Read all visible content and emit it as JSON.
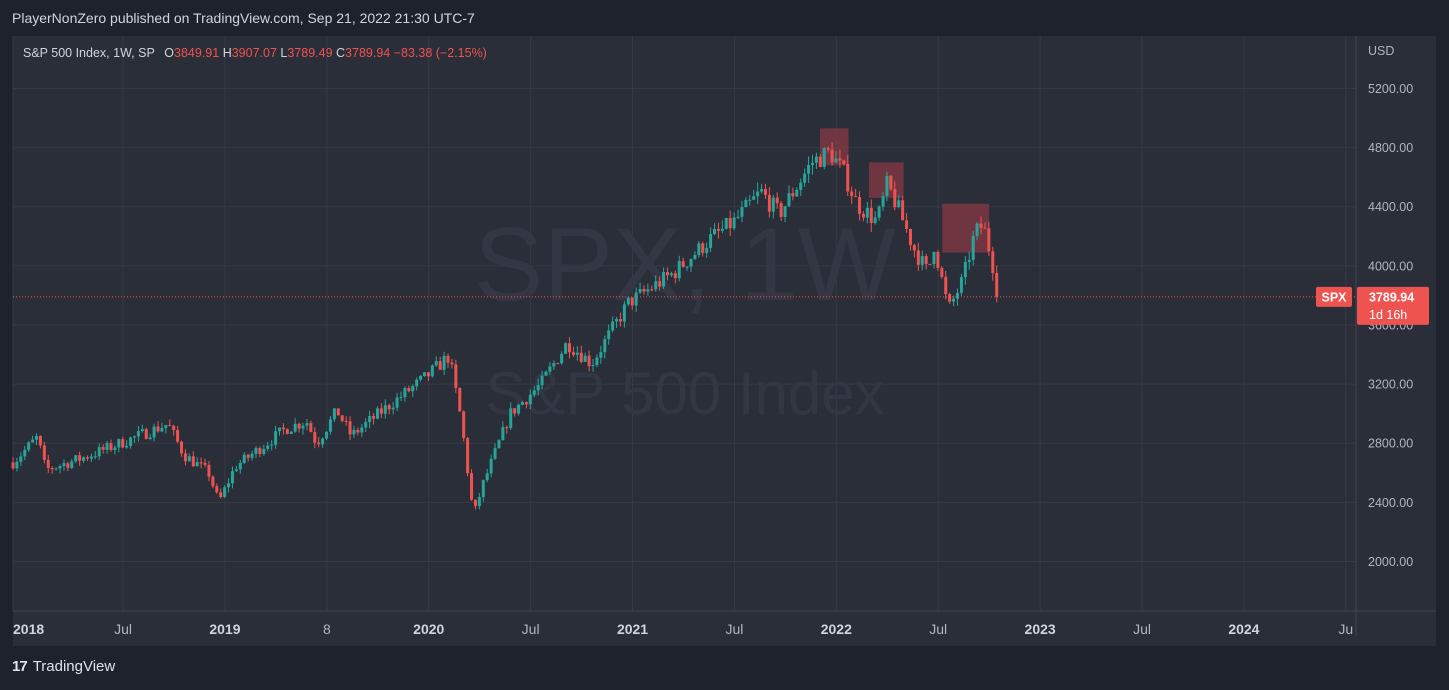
{
  "header": {
    "publisher_text": "PlayerNonZero published on TradingView.com, Sep 21, 2022 21:30 UTC-7"
  },
  "legend": {
    "symbol_text": "S&P 500 Index, 1W, SP",
    "open_label": "O",
    "open_value": "3849.91",
    "high_label": "H",
    "high_value": "3907.07",
    "low_label": "L",
    "low_value": "3789.49",
    "close_label": "C",
    "close_value": "3789.94",
    "change": "−83.38 (−2.15%)"
  },
  "watermark": {
    "ticker": "SPX, 1W",
    "name": "S&P 500 Index"
  },
  "price_tag": {
    "symbol": "SPX",
    "price": "3789.94",
    "countdown": "1d 16h"
  },
  "footer": {
    "brand": "TradingView",
    "logo_mark": "17"
  },
  "colors": {
    "up": "#26a69a",
    "down": "#ef5350",
    "background": "#2a2e39",
    "grid": "#363a45",
    "zone": "#8a3a44"
  },
  "chart_data": {
    "type": "candlestick",
    "title": "S&P 500 Index, 1W, SP",
    "currency": "USD",
    "y_ticks": [
      "5200.00",
      "4800.00",
      "4400.00",
      "4000.00",
      "3600.00",
      "3200.00",
      "2800.00",
      "2400.00",
      "2000.00"
    ],
    "y_tick_values": [
      5200,
      4800,
      4400,
      4000,
      3600,
      3200,
      2800,
      2400,
      2000
    ],
    "ylim": [
      1665,
      5555
    ],
    "x_ticks": [
      {
        "label": "2018",
        "t": 2017.96,
        "bold": true
      },
      {
        "label": "Jul",
        "t": 2018.5,
        "bold": false
      },
      {
        "label": "2019",
        "t": 2019.0,
        "bold": true
      },
      {
        "label": "8",
        "t": 2019.5,
        "bold": false
      },
      {
        "label": "2020",
        "t": 2020.0,
        "bold": true
      },
      {
        "label": "Jul",
        "t": 2020.5,
        "bold": false
      },
      {
        "label": "2021",
        "t": 2021.0,
        "bold": true
      },
      {
        "label": "Jul",
        "t": 2021.5,
        "bold": false
      },
      {
        "label": "2022",
        "t": 2022.0,
        "bold": true
      },
      {
        "label": "Jul",
        "t": 2022.5,
        "bold": false
      },
      {
        "label": "2023",
        "t": 2023.0,
        "bold": true
      },
      {
        "label": "Jul",
        "t": 2023.5,
        "bold": false
      },
      {
        "label": "2024",
        "t": 2024.0,
        "bold": true
      },
      {
        "label": "Ju",
        "t": 2024.5,
        "bold": false
      }
    ],
    "xlim": [
      2017.96,
      2024.55
    ],
    "last_price": 3789.94,
    "path_keypoints": [
      [
        2017.96,
        2670
      ],
      [
        2018.08,
        2840
      ],
      [
        2018.12,
        2620
      ],
      [
        2018.3,
        2700
      ],
      [
        2018.45,
        2780
      ],
      [
        2018.72,
        2930
      ],
      [
        2018.8,
        2720
      ],
      [
        2018.92,
        2600
      ],
      [
        2018.97,
        2400
      ],
      [
        2019.05,
        2640
      ],
      [
        2019.3,
        2900
      ],
      [
        2019.4,
        2950
      ],
      [
        2019.45,
        2800
      ],
      [
        2019.55,
        3020
      ],
      [
        2019.62,
        2850
      ],
      [
        2019.8,
        3050
      ],
      [
        2019.98,
        3240
      ],
      [
        2020.1,
        3390
      ],
      [
        2020.16,
        2950
      ],
      [
        2020.22,
        2300
      ],
      [
        2020.26,
        2500
      ],
      [
        2020.4,
        3000
      ],
      [
        2020.55,
        3200
      ],
      [
        2020.68,
        3480
      ],
      [
        2020.8,
        3340
      ],
      [
        2020.98,
        3750
      ],
      [
        2021.2,
        3950
      ],
      [
        2021.38,
        4180
      ],
      [
        2021.5,
        4300
      ],
      [
        2021.63,
        4500
      ],
      [
        2021.72,
        4350
      ],
      [
        2021.88,
        4700
      ],
      [
        2021.97,
        4770
      ],
      [
        2022.04,
        4620
      ],
      [
        2022.1,
        4420
      ],
      [
        2022.2,
        4300
      ],
      [
        2022.25,
        4550
      ],
      [
        2022.3,
        4400
      ],
      [
        2022.38,
        4120
      ],
      [
        2022.45,
        3950
      ],
      [
        2022.48,
        4150
      ],
      [
        2022.55,
        3700
      ],
      [
        2022.62,
        3900
      ],
      [
        2022.68,
        4220
      ],
      [
        2022.72,
        4280
      ],
      [
        2022.76,
        4060
      ],
      [
        2022.8,
        3790
      ]
    ],
    "resistance_zones": [
      {
        "t0": 2021.92,
        "t1": 2022.06,
        "p0": 4680,
        "p1": 4930
      },
      {
        "t0": 2022.16,
        "t1": 2022.33,
        "p0": 4460,
        "p1": 4700
      },
      {
        "t0": 2022.52,
        "t1": 2022.75,
        "p0": 4090,
        "p1": 4420
      }
    ]
  }
}
